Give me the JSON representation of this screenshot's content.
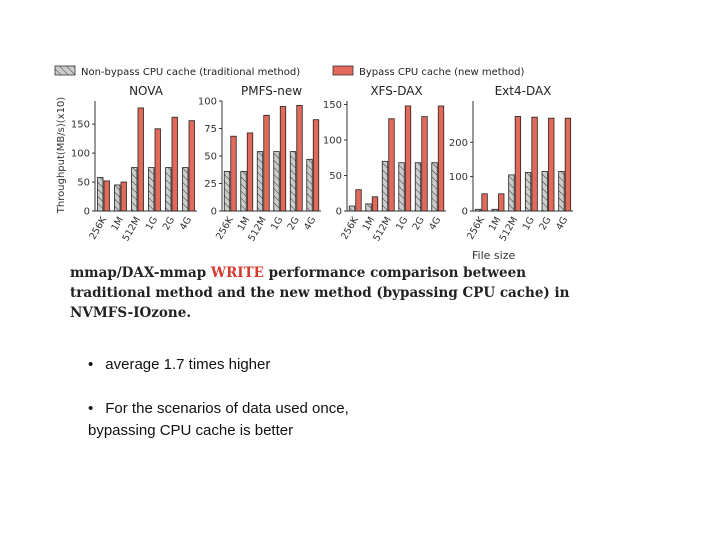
{
  "legend": [
    {
      "label": "Non-bypass CPU cache (traditional method)",
      "color": "#cccccc",
      "hatch": true
    },
    {
      "label": "Bypass CPU cache (new method)",
      "color": "#e36a5a",
      "hatch": false
    }
  ],
  "chart_data": [
    {
      "type": "bar",
      "title": "NOVA",
      "ylabel": "Throughput(MB/s)(x10)",
      "xlabel": "",
      "categories": [
        "256K",
        "1M",
        "512M",
        "1G",
        "2G",
        "4G"
      ],
      "yticks": [
        0,
        50,
        100,
        150
      ],
      "ylim": [
        0,
        190
      ],
      "series": [
        {
          "name": "Non-bypass CPU cache (traditional method)",
          "values": [
            58,
            45,
            75,
            75,
            75,
            75
          ]
        },
        {
          "name": "Bypass CPU cache (new method)",
          "values": [
            52,
            50,
            178,
            142,
            162,
            156
          ]
        }
      ]
    },
    {
      "type": "bar",
      "title": "PMFS-new",
      "ylabel": "",
      "xlabel": "",
      "categories": [
        "256K",
        "1M",
        "512M",
        "1G",
        "2G",
        "4G"
      ],
      "yticks": [
        0,
        25,
        50,
        75,
        100
      ],
      "ylim": [
        0,
        100
      ],
      "series": [
        {
          "name": "Non-bypass CPU cache (traditional method)",
          "values": [
            36,
            36,
            54,
            54,
            54,
            47
          ]
        },
        {
          "name": "Bypass CPU cache (new method)",
          "values": [
            68,
            71,
            87,
            95,
            96,
            83
          ]
        }
      ]
    },
    {
      "type": "bar",
      "title": "XFS-DAX",
      "ylabel": "",
      "xlabel": "",
      "categories": [
        "256K",
        "1M",
        "512M",
        "1G",
        "2G",
        "4G"
      ],
      "yticks": [
        0,
        50,
        100,
        150
      ],
      "ylim": [
        0,
        155
      ],
      "series": [
        {
          "name": "Non-bypass CPU cache (traditional method)",
          "values": [
            7,
            10,
            70,
            68,
            68,
            68
          ]
        },
        {
          "name": "Bypass CPU cache (new method)",
          "values": [
            30,
            20,
            130,
            148,
            133,
            148
          ]
        }
      ]
    },
    {
      "type": "bar",
      "title": "Ext4-DAX",
      "ylabel": "",
      "xlabel": "File size",
      "categories": [
        "256K",
        "1M",
        "512M",
        "1G",
        "2G",
        "4G"
      ],
      "yticks": [
        0,
        100,
        200
      ],
      "ylim": [
        0,
        320
      ],
      "series": [
        {
          "name": "Non-bypass CPU cache (traditional method)",
          "values": [
            5,
            5,
            105,
            112,
            115,
            115
          ]
        },
        {
          "name": "Bypass CPU cache (new method)",
          "values": [
            50,
            50,
            275,
            273,
            270,
            270
          ]
        }
      ]
    }
  ],
  "caption": {
    "part1": "mmap/DAX-mmap ",
    "highlight": "WRITE",
    "part2": " performance comparison between traditional method and the new method (bypassing CPU cache) in NVMFS-IOzone."
  },
  "bullets": [
    {
      "marker": "•",
      "text": "average 1.7 times higher"
    },
    {
      "marker": "•",
      "text": "For the scenarios of data used once, bypassing CPU cache is better"
    }
  ]
}
